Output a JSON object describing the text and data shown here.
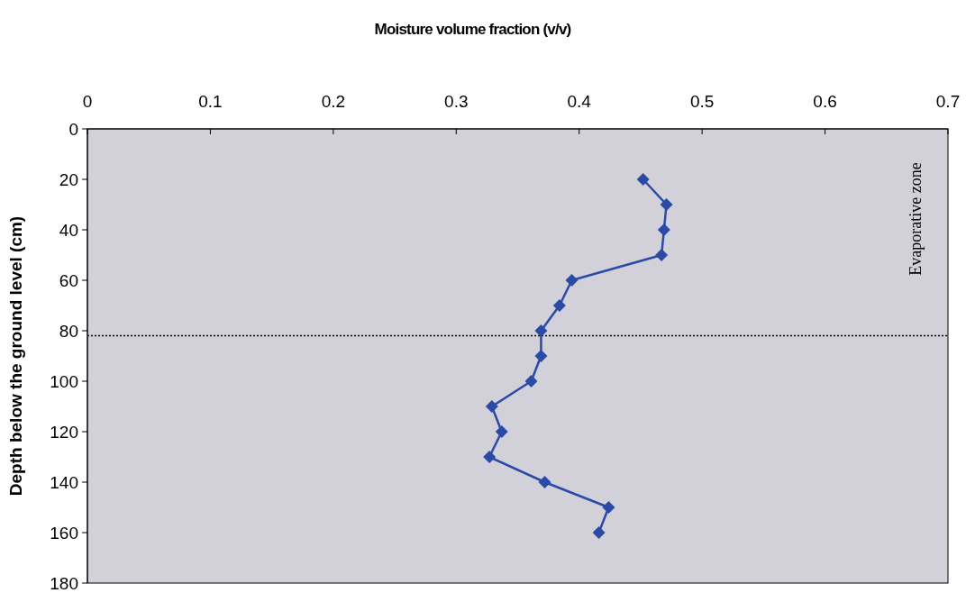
{
  "chart_data": {
    "type": "line",
    "xlabel": "Moisture volume fraction (v/v)",
    "ylabel": "Depth below the ground level (cm)",
    "series": [
      {
        "color": "#2a4aa6",
        "x": [
          0.452,
          0.471,
          0.469,
          0.467,
          0.394,
          0.384,
          0.369,
          0.369,
          0.361,
          0.329,
          0.337,
          0.327,
          0.372,
          0.424,
          0.416
        ],
        "values": [
          20,
          30,
          40,
          50,
          60,
          70,
          80,
          90,
          100,
          110,
          120,
          130,
          140,
          150,
          160
        ]
      }
    ],
    "xlim": [
      0,
      0.7
    ],
    "xticks": [
      0,
      0.1,
      0.2,
      0.3,
      0.4,
      0.5,
      0.6,
      0.7
    ],
    "ylim": [
      180,
      0
    ],
    "yticks": [
      0,
      20,
      40,
      60,
      80,
      100,
      120,
      140,
      160,
      180
    ],
    "marker": "diamond",
    "line_style": "solid",
    "grid": false,
    "ref_lines": [
      {
        "axis": "y",
        "value": 82,
        "line_style": "dotted",
        "color": "#000000"
      }
    ],
    "annotations": [
      "Evaporative zone"
    ]
  }
}
